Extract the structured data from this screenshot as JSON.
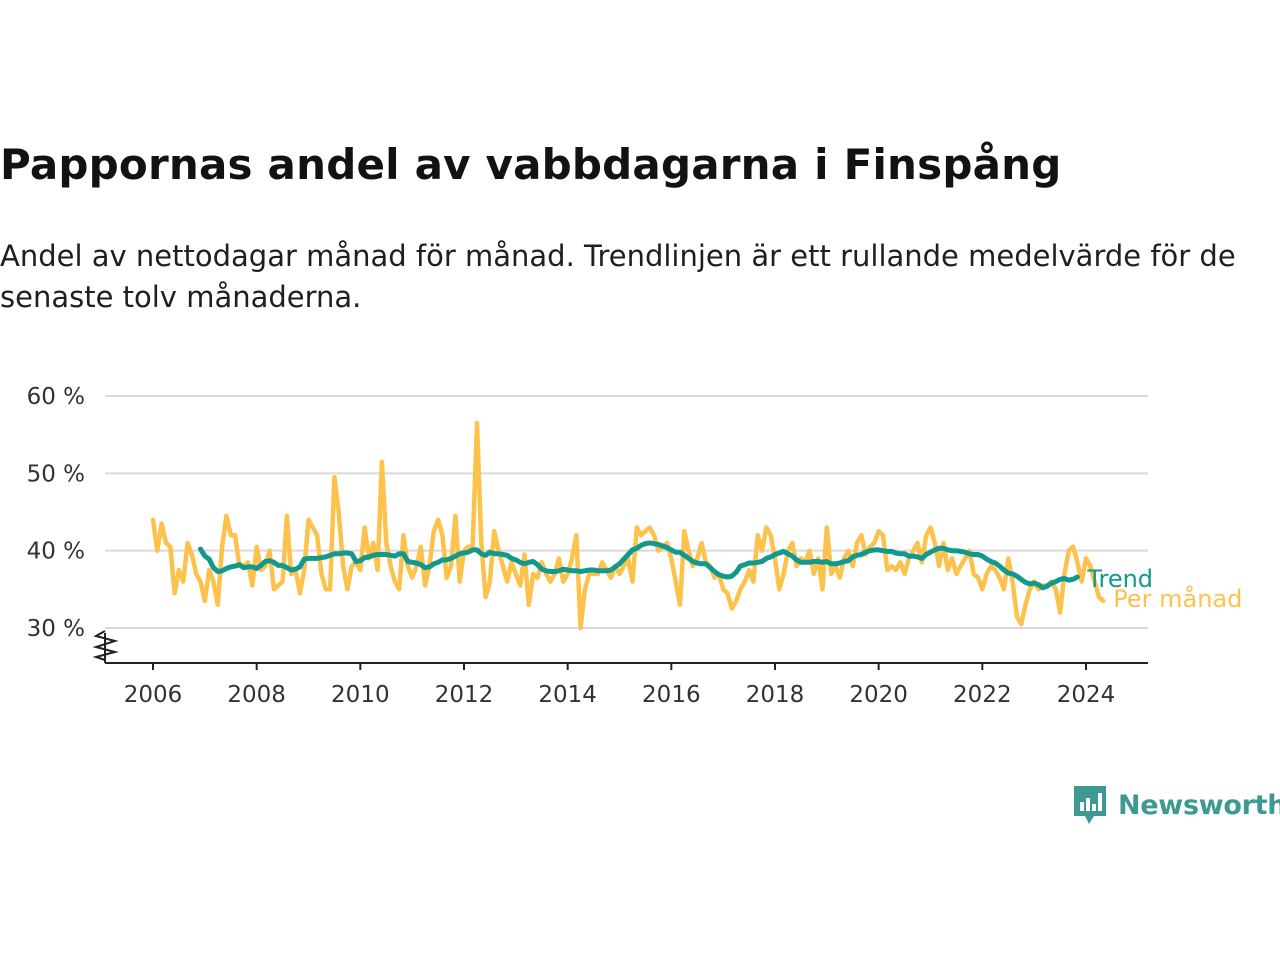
{
  "title": "Pappornas andel av vabbdagarna i Finspång",
  "subtitle": "Andel av nettodagar månad för månad. Trendlinjen är ett rullande medelvärde för de senaste tolv månaderna.",
  "brand": {
    "name": "Newsworthy",
    "color": "#3c9a92",
    "icon": "bar-chart-speech-bubble-icon"
  },
  "chart_data": {
    "type": "line",
    "x_axis": {
      "ticks": [
        "2006",
        "2008",
        "2010",
        "2012",
        "2014",
        "2016",
        "2018",
        "2020",
        "2022",
        "2024"
      ],
      "range": [
        "2005-03",
        "2025-03"
      ]
    },
    "y_axis": {
      "ticks": [
        "30 %",
        "40 %",
        "50 %",
        "60 %"
      ],
      "tick_values": [
        30,
        40,
        50,
        60
      ],
      "range": [
        25,
        60
      ],
      "axis_break": true
    },
    "grid": true,
    "legend": "inline labels at line ends (right)",
    "start": "2006-01",
    "series": [
      {
        "name": "Per månad",
        "color": "#fdc24c",
        "values": [
          44,
          40,
          43.5,
          41,
          40.5,
          34.5,
          37.5,
          36,
          41,
          39.5,
          37,
          36,
          33.5,
          37.5,
          36,
          33,
          40.5,
          44.5,
          42,
          42,
          38,
          38,
          38.5,
          35.5,
          40.5,
          37.5,
          38,
          40,
          35,
          35.5,
          36,
          44.5,
          37,
          37.5,
          34.5,
          37.5,
          44,
          43,
          42,
          37,
          35,
          35,
          49.5,
          45,
          38,
          35,
          38,
          38.5,
          37.5,
          43,
          39,
          41,
          37.5,
          51.5,
          41,
          38,
          36,
          35,
          42,
          38,
          36.5,
          38,
          40.5,
          35.5,
          38,
          42.5,
          44,
          42,
          36.5,
          38,
          44.5,
          36,
          40,
          40.5,
          40.5,
          56.5,
          41,
          34,
          36,
          42.5,
          40,
          38,
          36,
          38.5,
          37,
          35.5,
          39.5,
          33,
          37,
          36.5,
          38.5,
          37,
          36,
          37,
          39,
          36,
          37,
          39,
          42,
          30,
          35,
          37,
          37,
          37,
          38.5,
          37.5,
          36.5,
          38,
          37,
          38,
          39,
          36,
          43,
          42,
          42.5,
          43,
          42,
          40,
          40.5,
          41,
          39,
          36,
          33,
          42.5,
          40,
          38,
          39,
          41,
          38.5,
          38,
          36.5,
          37,
          35,
          34.5,
          32.5,
          33.5,
          35,
          36,
          37.5,
          36,
          42,
          40,
          43,
          42,
          39,
          35,
          37,
          40,
          41,
          38,
          39,
          38.5,
          40,
          37,
          39,
          35,
          43,
          37,
          38,
          36.5,
          39,
          40,
          38,
          41,
          42,
          39.5,
          40.5,
          41,
          42.5,
          42,
          37.5,
          38,
          37.5,
          38.5,
          37,
          39,
          40,
          41,
          38.5,
          42,
          43,
          41,
          38,
          41,
          37.5,
          39,
          37,
          38,
          39,
          40,
          37,
          36.5,
          35,
          37,
          38,
          37.5,
          36.5,
          35,
          39,
          36,
          31.5,
          30.5,
          33,
          35,
          36,
          35,
          35.5,
          35.5,
          36,
          35,
          32,
          37,
          40,
          40.5,
          38.5,
          36,
          39,
          38,
          36,
          34,
          33.5
        ]
      },
      {
        "name": "Trend",
        "color": "#11998e",
        "start": "2006-12",
        "values": [
          40.2,
          39.3,
          38.9,
          37.8,
          37.3,
          37.4,
          37.7,
          37.9,
          38,
          38.2,
          37.8,
          37.9,
          37.9,
          37.7,
          38.1,
          38.6,
          38.7,
          38.5,
          38.1,
          38.1,
          37.8,
          37.5,
          37.6,
          37.9,
          38.9,
          39,
          39,
          39,
          39.1,
          39.2,
          39.4,
          39.6,
          39.6,
          39.7,
          39.7,
          39.6,
          38.6,
          38.7,
          39.1,
          39.2,
          39.4,
          39.5,
          39.5,
          39.5,
          39.4,
          39.3,
          39.6,
          39.6,
          38.6,
          38.5,
          38.4,
          38.2,
          37.8,
          37.9,
          38.3,
          38.5,
          38.8,
          38.8,
          39,
          39.3,
          39.6,
          39.7,
          39.8,
          40.1,
          40.1,
          39.6,
          39.4,
          39.8,
          39.6,
          39.6,
          39.5,
          39.4,
          39,
          38.8,
          38.5,
          38.3,
          38.5,
          38.6,
          38.2,
          37.6,
          37.4,
          37.3,
          37.3,
          37.4,
          37.6,
          37.5,
          37.4,
          37.4,
          37.3,
          37.4,
          37.5,
          37.5,
          37.4,
          37.4,
          37.4,
          37.5,
          37.9,
          38.3,
          38.9,
          39.5,
          40.1,
          40.3,
          40.7,
          40.9,
          41,
          40.9,
          40.8,
          40.6,
          40.4,
          40.1,
          39.8,
          39.8,
          39.4,
          39,
          38.6,
          38.4,
          38.3,
          38.3,
          37.8,
          37.3,
          36.9,
          36.7,
          36.6,
          36.7,
          37.2,
          38,
          38.2,
          38.4,
          38.4,
          38.5,
          38.6,
          39,
          39.2,
          39.5,
          39.7,
          39.9,
          39.6,
          39.3,
          38.8,
          38.5,
          38.5,
          38.5,
          38.6,
          38.6,
          38.5,
          38.6,
          38.3,
          38.3,
          38.4,
          38.6,
          38.7,
          39.2,
          39.4,
          39.5,
          39.8,
          40,
          40.1,
          40.1,
          40,
          39.9,
          39.9,
          39.7,
          39.6,
          39.6,
          39.3,
          39.3,
          39.2,
          39,
          39.5,
          39.8,
          40.1,
          40.3,
          40.3,
          40.1,
          40,
          40,
          39.9,
          39.8,
          39.6,
          39.5,
          39.5,
          39.3,
          38.9,
          38.6,
          38.4,
          38,
          37.5,
          37.1,
          37,
          36.7,
          36.3,
          35.9,
          35.7,
          35.8,
          35.6,
          35.2,
          35.4,
          35.8,
          36,
          36.3,
          36.4,
          36.2,
          36.3,
          36.6
        ]
      }
    ]
  }
}
